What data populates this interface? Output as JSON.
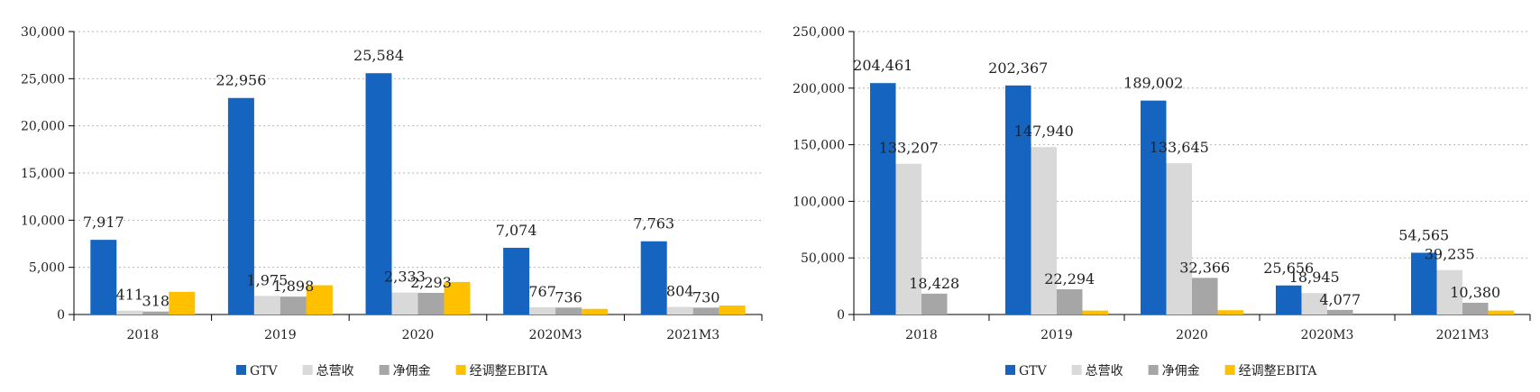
{
  "chart_data": [
    {
      "type": "bar",
      "categories": [
        "2018",
        "2019",
        "2020",
        "2020M3",
        "2021M3"
      ],
      "ylim": [
        0,
        30000
      ],
      "yticks": [
        "0",
        "5,000",
        "10,000",
        "15,000",
        "20,000",
        "25,000",
        "30,000"
      ],
      "ytick_values": [
        0,
        5000,
        10000,
        15000,
        20000,
        25000,
        30000
      ],
      "grid": true,
      "legend_position": "bottom",
      "series": [
        {
          "name": "GTV",
          "color": "#1565c0",
          "values": [
            7917,
            22956,
            25584,
            7074,
            7763
          ],
          "labels": [
            "7,917",
            "22,956",
            "25,584",
            "7,074",
            "7,763"
          ]
        },
        {
          "name": "总营收",
          "color": "#d9d9d9",
          "values": [
            411,
            1975,
            2333,
            767,
            804
          ],
          "labels": [
            "411",
            "1,975",
            "2,333",
            "767",
            "804"
          ]
        },
        {
          "name": "净佣金",
          "color": "#a6a6a6",
          "values": [
            318,
            1898,
            2293,
            736,
            730
          ],
          "labels": [
            "318",
            "1,898",
            "2,293",
            "736",
            "730"
          ]
        },
        {
          "name": "经调整EBITA",
          "color": "#ffc000",
          "values": [
            2400,
            3100,
            3450,
            600,
            950
          ],
          "labels": [
            "",
            "",
            "",
            "",
            ""
          ]
        }
      ]
    },
    {
      "type": "bar",
      "categories": [
        "2018",
        "2019",
        "2020",
        "2020M3",
        "2021M3"
      ],
      "ylim": [
        0,
        250000
      ],
      "yticks": [
        "0",
        "50,000",
        "100,000",
        "150,000",
        "200,000",
        "250,000"
      ],
      "ytick_values": [
        0,
        50000,
        100000,
        150000,
        200000,
        250000
      ],
      "grid": true,
      "legend_position": "bottom",
      "series": [
        {
          "name": "GTV",
          "color": "#1565c0",
          "values": [
            204461,
            202367,
            189002,
            25656,
            54565
          ],
          "labels": [
            "204,461",
            "202,367",
            "189,002",
            "25,656",
            "54,565"
          ]
        },
        {
          "name": "总营收",
          "color": "#d9d9d9",
          "values": [
            133207,
            147940,
            133645,
            18945,
            39235
          ],
          "labels": [
            "133,207",
            "147,940",
            "133,645",
            "18,945",
            "39,235"
          ]
        },
        {
          "name": "净佣金",
          "color": "#a6a6a6",
          "values": [
            18428,
            22294,
            32366,
            4077,
            10380
          ],
          "labels": [
            "18,428",
            "22,294",
            "32,366",
            "4,077",
            "10,380"
          ]
        },
        {
          "name": "经调整EBITA",
          "color": "#ffc000",
          "values": [
            0,
            3500,
            3800,
            0,
            3500
          ],
          "labels": [
            "",
            "",
            "",
            "",
            ""
          ]
        }
      ]
    }
  ]
}
